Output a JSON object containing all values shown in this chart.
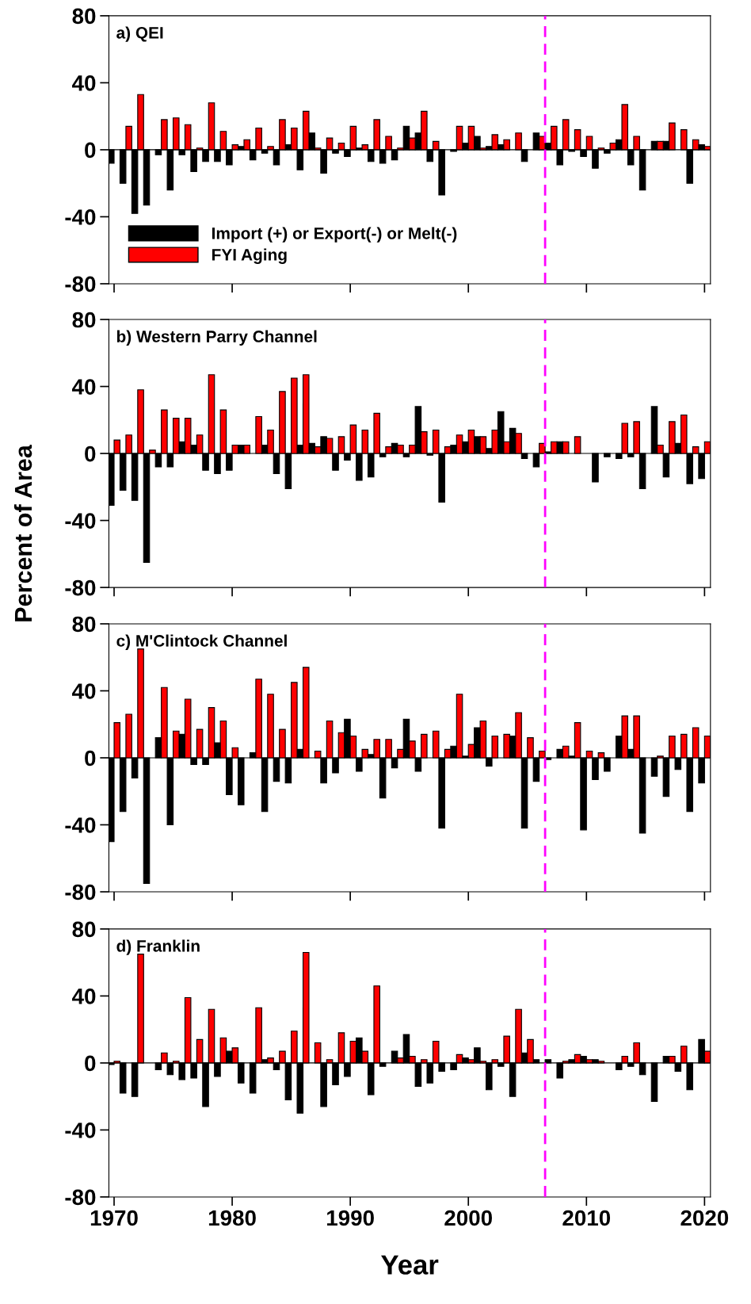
{
  "chart_data": [
    {
      "type": "bar",
      "title": "a) QEI",
      "legend": "bottom left",
      "tick_labels": "y",
      "xlim": [
        1969.56,
        2020.5
      ],
      "xticks": [
        1970,
        1980,
        1990,
        2000,
        2010,
        2020
      ],
      "ylim": [
        -80,
        80
      ],
      "yticks": [
        -80,
        -40,
        0,
        40,
        80
      ],
      "x": [
        1970,
        1971,
        1972,
        1973,
        1974,
        1975,
        1976,
        1977,
        1978,
        1979,
        1980,
        1981,
        1982,
        1983,
        1984,
        1985,
        1986,
        1987,
        1988,
        1989,
        1990,
        1991,
        1992,
        1993,
        1994,
        1995,
        1996,
        1997,
        1998,
        1999,
        2000,
        2001,
        2002,
        2003,
        2004,
        2005,
        2006,
        2007,
        2008,
        2009,
        2010,
        2011,
        2012,
        2013,
        2014,
        2015,
        2016,
        2017,
        2018,
        2019,
        2020
      ],
      "series": [
        {
          "name": "Import (+) or Export(-) or Melt(-)",
          "color": "#000000",
          "values": [
            -8,
            -20,
            -38,
            -33,
            -3,
            -24,
            -3,
            -13,
            -7,
            -7,
            -9,
            2,
            -6,
            -2,
            -9,
            3,
            -12,
            10,
            -14,
            -2,
            -4,
            1,
            -7,
            -8,
            -6,
            14,
            10,
            -7,
            -27,
            -1,
            4,
            8,
            2,
            3,
            0,
            -7,
            10,
            4,
            -9,
            -1,
            -4,
            -11,
            -2,
            6,
            -9,
            -24,
            5,
            5,
            0,
            -20,
            3
          ]
        },
        {
          "name": "FYI Aging",
          "color": "#ff0000",
          "values": [
            0,
            14,
            33,
            0,
            18,
            19,
            15,
            1,
            28,
            11,
            3,
            6,
            13,
            2,
            18,
            13,
            23,
            1,
            7,
            4,
            14,
            3,
            18,
            8,
            1,
            7,
            23,
            5,
            0,
            14,
            14,
            1,
            9,
            6,
            10,
            0,
            8,
            14,
            18,
            12,
            8,
            1,
            4,
            27,
            8,
            0,
            5,
            16,
            12,
            6,
            2
          ]
        }
      ],
      "ref_lines": [
        {
          "axis": "x",
          "value": 2006.5,
          "color": "#ff00ff",
          "line_style": "dashed"
        }
      ]
    },
    {
      "type": "bar",
      "title": "b) Western Parry Channel",
      "ylabel": "Percent of Area",
      "tick_labels": "y",
      "xlim": [
        1969.56,
        2020.5
      ],
      "xticks": [
        1970,
        1980,
        1990,
        2000,
        2010,
        2020
      ],
      "ylim": [
        -80,
        80
      ],
      "yticks": [
        -80,
        -40,
        0,
        40,
        80
      ],
      "x": [
        1970,
        1971,
        1972,
        1973,
        1974,
        1975,
        1976,
        1977,
        1978,
        1979,
        1980,
        1981,
        1982,
        1983,
        1984,
        1985,
        1986,
        1987,
        1988,
        1989,
        1990,
        1991,
        1992,
        1993,
        1994,
        1995,
        1996,
        1997,
        1998,
        1999,
        2000,
        2001,
        2002,
        2003,
        2004,
        2005,
        2006,
        2007,
        2008,
        2009,
        2010,
        2011,
        2012,
        2013,
        2014,
        2015,
        2016,
        2017,
        2018,
        2019,
        2020
      ],
      "series": [
        {
          "color": "#000000",
          "values": [
            -31,
            -22,
            -28,
            -65,
            -8,
            -8,
            7,
            5,
            -10,
            -12,
            -10,
            5,
            0,
            5,
            -12,
            -21,
            5,
            6,
            10,
            -10,
            -4,
            -16,
            -14,
            -2,
            6,
            -2,
            28,
            -1,
            -29,
            5,
            7,
            10,
            3,
            25,
            15,
            -3,
            -8,
            1,
            7,
            0,
            0,
            -17,
            -2,
            -3,
            -2,
            -21,
            28,
            -14,
            6,
            -18,
            -15
          ]
        },
        {
          "color": "#ff0000",
          "values": [
            8,
            11,
            38,
            2,
            26,
            21,
            21,
            11,
            47,
            26,
            5,
            5,
            22,
            14,
            37,
            45,
            47,
            4,
            9,
            10,
            17,
            14,
            24,
            4,
            5,
            5,
            13,
            14,
            4,
            11,
            14,
            10,
            14,
            7,
            12,
            0,
            6,
            7,
            7,
            10,
            0,
            0,
            0,
            18,
            19,
            0,
            5,
            19,
            23,
            4,
            7
          ]
        }
      ],
      "ref_lines": [
        {
          "axis": "x",
          "value": 2006.5,
          "color": "#ff00ff",
          "line_style": "dashed"
        }
      ]
    },
    {
      "type": "bar",
      "title": "c) M'Clintock Channel",
      "tick_labels": "y",
      "xlim": [
        1969.56,
        2020.5
      ],
      "xticks": [
        1970,
        1980,
        1990,
        2000,
        2010,
        2020
      ],
      "ylim": [
        -80,
        80
      ],
      "yticks": [
        -80,
        -40,
        0,
        40,
        80
      ],
      "x": [
        1970,
        1971,
        1972,
        1973,
        1974,
        1975,
        1976,
        1977,
        1978,
        1979,
        1980,
        1981,
        1982,
        1983,
        1984,
        1985,
        1986,
        1987,
        1988,
        1989,
        1990,
        1991,
        1992,
        1993,
        1994,
        1995,
        1996,
        1997,
        1998,
        1999,
        2000,
        2001,
        2002,
        2003,
        2004,
        2005,
        2006,
        2007,
        2008,
        2009,
        2010,
        2011,
        2012,
        2013,
        2014,
        2015,
        2016,
        2017,
        2018,
        2019,
        2020
      ],
      "series": [
        {
          "color": "#000000",
          "values": [
            -50,
            -32,
            -12,
            -75,
            12,
            -40,
            14,
            -4,
            -4,
            9,
            -22,
            -28,
            3,
            -32,
            -14,
            -15,
            5,
            0,
            -15,
            -9,
            23,
            -8,
            2,
            -24,
            -6,
            23,
            -8,
            0,
            -42,
            7,
            1,
            18,
            -5,
            0,
            13,
            -42,
            -14,
            -1,
            5,
            1,
            -43,
            -13,
            -8,
            13,
            5,
            -45,
            -11,
            -23,
            -7,
            -32,
            -15
          ]
        },
        {
          "color": "#ff0000",
          "values": [
            21,
            26,
            65,
            0,
            42,
            16,
            35,
            17,
            30,
            22,
            6,
            0,
            47,
            38,
            17,
            45,
            54,
            4,
            22,
            15,
            13,
            5,
            11,
            11,
            5,
            10,
            14,
            16,
            5,
            38,
            8,
            22,
            13,
            14,
            27,
            12,
            4,
            0,
            7,
            21,
            4,
            3,
            0,
            25,
            25,
            0,
            1,
            13,
            14,
            18,
            13
          ]
        }
      ],
      "ref_lines": [
        {
          "axis": "x",
          "value": 2006.5,
          "color": "#ff00ff",
          "line_style": "dashed"
        }
      ]
    },
    {
      "type": "bar",
      "title": "d) Franklin",
      "xlabel": "Year",
      "xlim": [
        1969.56,
        2020.5
      ],
      "xticks": [
        1970,
        1980,
        1990,
        2000,
        2010,
        2020
      ],
      "ylim": [
        -80,
        80
      ],
      "yticks": [
        -80,
        -40,
        0,
        40,
        80
      ],
      "x": [
        1970,
        1971,
        1972,
        1973,
        1974,
        1975,
        1976,
        1977,
        1978,
        1979,
        1980,
        1981,
        1982,
        1983,
        1984,
        1985,
        1986,
        1987,
        1988,
        1989,
        1990,
        1991,
        1992,
        1993,
        1994,
        1995,
        1996,
        1997,
        1998,
        1999,
        2000,
        2001,
        2002,
        2003,
        2004,
        2005,
        2006,
        2007,
        2008,
        2009,
        2010,
        2011,
        2012,
        2013,
        2014,
        2015,
        2016,
        2017,
        2018,
        2019,
        2020
      ],
      "series": [
        {
          "color": "#000000",
          "values": [
            -1,
            -18,
            -20,
            0,
            -4,
            -7,
            -10,
            -9,
            -26,
            -8,
            7,
            -12,
            -18,
            2,
            -4,
            -22,
            -30,
            0,
            -26,
            -13,
            -8,
            15,
            -19,
            -2,
            7,
            17,
            -14,
            -12,
            -5,
            -4,
            3,
            9,
            -16,
            -2,
            -20,
            6,
            2,
            2,
            -9,
            2,
            4,
            2,
            0,
            -4,
            -2,
            -7,
            -23,
            4,
            -5,
            -16,
            14
          ]
        },
        {
          "color": "#ff0000",
          "values": [
            1,
            0,
            65,
            0,
            6,
            1,
            39,
            14,
            32,
            15,
            9,
            0,
            33,
            3,
            7,
            19,
            66,
            12,
            2,
            18,
            13,
            7,
            46,
            0,
            3,
            4,
            2,
            13,
            0,
            5,
            2,
            1,
            2,
            16,
            32,
            14,
            0,
            0,
            1,
            5,
            2,
            1,
            0,
            4,
            12,
            0,
            0,
            4,
            10,
            0,
            7
          ]
        }
      ],
      "ref_lines": [
        {
          "axis": "x",
          "value": 2006.5,
          "color": "#ff00ff",
          "line_style": "dashed"
        }
      ]
    }
  ]
}
